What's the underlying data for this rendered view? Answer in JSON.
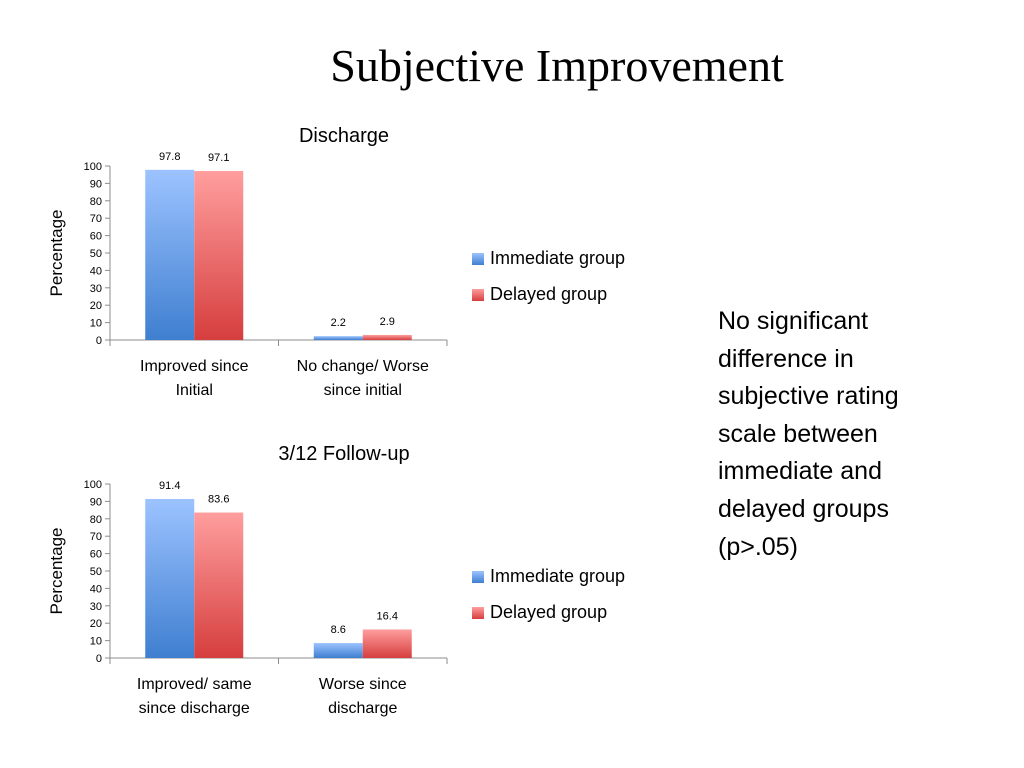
{
  "slide": {
    "title": "Subjective Improvement",
    "note": "No significant difference in subjective rating scale between immediate and delayed groups (p>.05)"
  },
  "colors": {
    "immediate_top": "#9cc3ff",
    "immediate_bottom": "#3f7fd0",
    "delayed_top": "#ff9e9e",
    "delayed_bottom": "#d63e3e",
    "axis": "#8c8c8c"
  },
  "chart_data": [
    {
      "type": "bar",
      "title": "Discharge",
      "ylabel": "Percentage",
      "xlabel": "",
      "ylim": [
        0,
        100
      ],
      "yticks": [
        0,
        10,
        20,
        30,
        40,
        50,
        60,
        70,
        80,
        90,
        100
      ],
      "categories": [
        [
          "Improved since",
          "Initial"
        ],
        [
          "No change/ Worse",
          "since initial"
        ]
      ],
      "series": [
        {
          "name": "Immediate group",
          "values": [
            97.8,
            2.2
          ]
        },
        {
          "name": "Delayed group",
          "values": [
            97.1,
            2.9
          ]
        }
      ],
      "legend": "right",
      "grid": false
    },
    {
      "type": "bar",
      "title": "3/12 Follow-up",
      "ylabel": "Percentage",
      "xlabel": "",
      "ylim": [
        0,
        100
      ],
      "yticks": [
        0,
        10,
        20,
        30,
        40,
        50,
        60,
        70,
        80,
        90,
        100
      ],
      "categories": [
        [
          "Improved/ same",
          "since discharge"
        ],
        [
          "Worse since",
          "discharge"
        ]
      ],
      "series": [
        {
          "name": "Immediate group",
          "values": [
            91.4,
            8.6
          ]
        },
        {
          "name": "Delayed group",
          "values": [
            83.6,
            16.4
          ]
        }
      ],
      "legend": "right",
      "grid": false
    }
  ]
}
